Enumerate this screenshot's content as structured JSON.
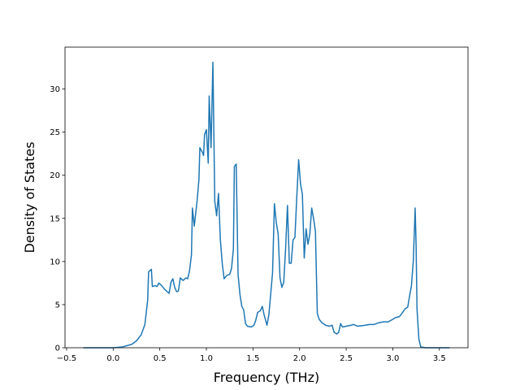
{
  "chart_data": {
    "type": "line",
    "xlabel": "Frequency (THz)",
    "ylabel": "Density of States",
    "x": [
      -0.32,
      0.0,
      0.1,
      0.2,
      0.25,
      0.3,
      0.34,
      0.37,
      0.38,
      0.41,
      0.42,
      0.45,
      0.47,
      0.49,
      0.52,
      0.55,
      0.6,
      0.62,
      0.64,
      0.66,
      0.68,
      0.7,
      0.72,
      0.75,
      0.78,
      0.8,
      0.82,
      0.84,
      0.85,
      0.87,
      0.9,
      0.92,
      0.93,
      0.96,
      0.97,
      0.98,
      1.0,
      1.02,
      1.03,
      1.05,
      1.07,
      1.09,
      1.11,
      1.13,
      1.15,
      1.17,
      1.19,
      1.22,
      1.25,
      1.27,
      1.29,
      1.3,
      1.32,
      1.34,
      1.36,
      1.38,
      1.4,
      1.42,
      1.44,
      1.48,
      1.51,
      1.53,
      1.55,
      1.58,
      1.6,
      1.62,
      1.65,
      1.67,
      1.69,
      1.71,
      1.73,
      1.75,
      1.77,
      1.79,
      1.81,
      1.83,
      1.85,
      1.87,
      1.89,
      1.91,
      1.93,
      1.95,
      1.97,
      1.99,
      2.01,
      2.03,
      2.05,
      2.07,
      2.09,
      2.11,
      2.13,
      2.15,
      2.17,
      2.19,
      2.21,
      2.24,
      2.28,
      2.32,
      2.35,
      2.37,
      2.4,
      2.42,
      2.44,
      2.46,
      2.5,
      2.55,
      2.58,
      2.62,
      2.7,
      2.75,
      2.8,
      2.85,
      2.9,
      2.95,
      3.0,
      3.03,
      3.07,
      3.1,
      3.13,
      3.16,
      3.18,
      3.2,
      3.22,
      3.24,
      3.25,
      3.26,
      3.28,
      3.3,
      3.35,
      3.61
    ],
    "series": [
      {
        "name": "DOS",
        "color": "#1f77b4",
        "values": [
          0,
          0,
          0.1,
          0.4,
          0.8,
          1.5,
          2.7,
          5.5,
          8.8,
          9.1,
          7.1,
          7.2,
          7.1,
          7.5,
          7.2,
          6.8,
          6.3,
          7.6,
          8.0,
          7.0,
          6.5,
          6.6,
          8.1,
          7.8,
          8.1,
          8.0,
          9.0,
          10.8,
          16.2,
          14.1,
          17.0,
          19.5,
          23.2,
          22.6,
          22.3,
          24.7,
          25.3,
          21.4,
          29.2,
          23.2,
          33.1,
          17.0,
          15.3,
          17.9,
          12.5,
          9.8,
          8.0,
          8.4,
          8.5,
          9.2,
          11.5,
          21.0,
          21.3,
          8.5,
          6.2,
          4.8,
          4.4,
          2.8,
          2.5,
          2.4,
          2.6,
          3.2,
          4.1,
          4.3,
          4.8,
          3.8,
          2.6,
          3.8,
          6.2,
          8.7,
          16.7,
          14.5,
          13.2,
          8.1,
          7.0,
          7.6,
          11.5,
          16.5,
          9.8,
          9.8,
          12.5,
          12.8,
          17.5,
          21.8,
          19.0,
          17.8,
          10.4,
          13.8,
          12.0,
          13.2,
          16.2,
          15.0,
          13.5,
          4.0,
          3.3,
          2.9,
          2.6,
          2.5,
          2.6,
          1.8,
          1.6,
          1.8,
          2.8,
          2.4,
          2.5,
          2.6,
          2.7,
          2.5,
          2.6,
          2.7,
          2.7,
          2.9,
          3.0,
          3.0,
          3.3,
          3.5,
          3.6,
          4.0,
          4.5,
          4.7,
          6.0,
          7.2,
          10.0,
          16.2,
          12.0,
          4.5,
          1.0,
          0.1,
          0,
          0
        ]
      }
    ],
    "xlim": [
      -0.517,
      3.807
    ],
    "ylim": [
      0,
      34.86
    ],
    "xticks": [
      {
        "value": -0.5,
        "label": "−0.5"
      },
      {
        "value": 0,
        "label": "0.0"
      },
      0.5,
      {
        "value": 1,
        "label": "1.0"
      },
      1.5,
      {
        "value": 2,
        "label": "2.0"
      },
      2.5,
      {
        "value": 3,
        "label": "3.0"
      },
      3.5
    ],
    "yticks": [
      0,
      5,
      10,
      15,
      20,
      25,
      30
    ]
  }
}
